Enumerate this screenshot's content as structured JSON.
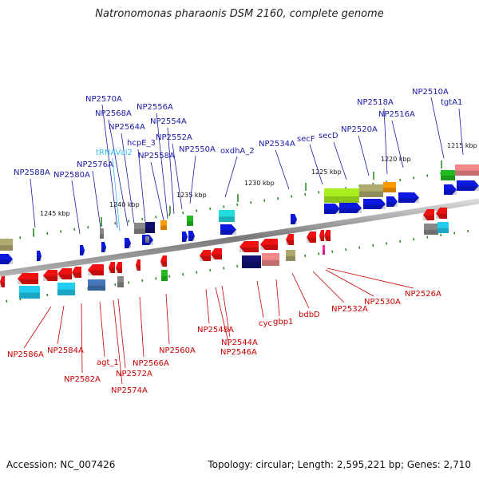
{
  "title": "Natronomonas pharaonis DSM 2160, complete genome",
  "footer": {
    "accession": "Accession: NC_007426",
    "summary": "Topology: circular; Length: 2,595,221 bp; Genes: 2,710"
  },
  "colors": {
    "forward_label": "#1a1aa8",
    "reverse_label": "#cc0000",
    "trna_label": "#33bbee",
    "forward_gene": "#0a18e0",
    "reverse_gene": "#ee1111",
    "backbone": "#8a8a8a"
  },
  "scale_labels": [
    "1245 kbp",
    "1240 kbp",
    "1235 kbp",
    "1230 kbp",
    "1225 kbp",
    "1220 kbp",
    "1215 kbp"
  ],
  "forward_genes": [
    "NP2510A",
    "tgtA1",
    "NP2516A",
    "NP2518A",
    "NP2520A",
    "secD",
    "secF",
    "NP2534A",
    "oxdhA_2",
    "NP2550A",
    "NP2552A",
    "NP2554A",
    "NP2556A",
    "NP2558A",
    "hcpE_3",
    "NP2564A",
    "NP2568A",
    "NP2570A",
    "tRNAVal2",
    "NP2576A",
    "NP2580A",
    "NP2588A"
  ],
  "reverse_genes": [
    "NP2526A",
    "NP2530A",
    "NP2532A",
    "bdbD",
    "gbp1",
    "cyc",
    "NP2544A",
    "NP2546A",
    "NP2548A",
    "NP2560A",
    "NP2566A",
    "NP2572A",
    "NP2574A",
    "agt_1",
    "NP2582A",
    "NP2584A",
    "NP2586A"
  ]
}
